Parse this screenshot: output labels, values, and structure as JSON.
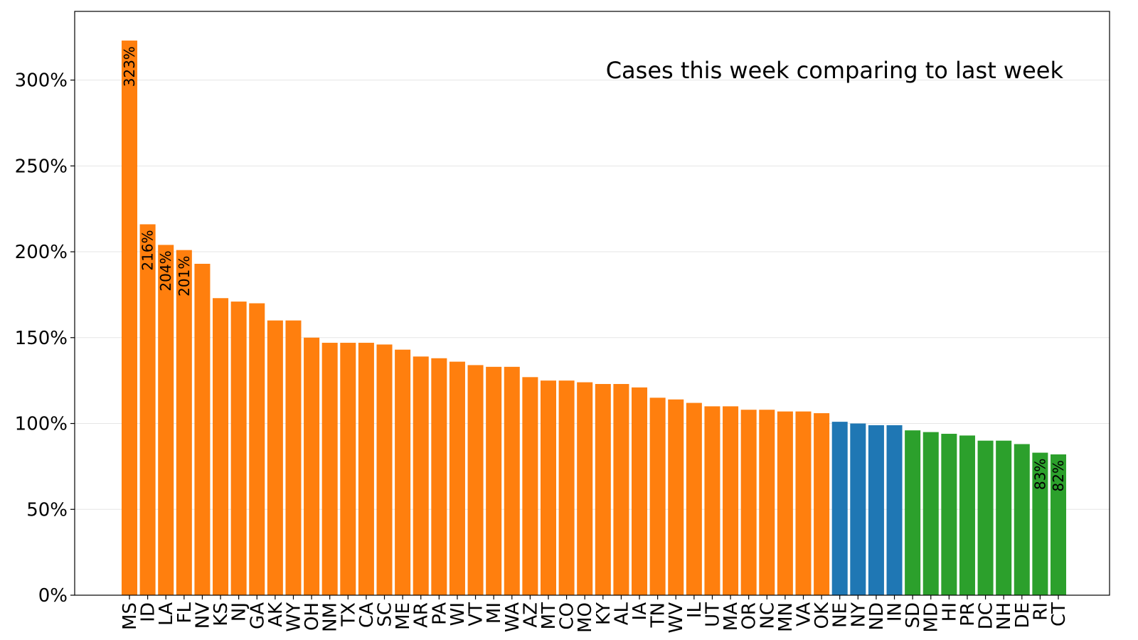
{
  "chart_data": {
    "type": "bar",
    "title": "Cases this week comparing to last week",
    "xlabel": "",
    "ylabel": "",
    "ylim": [
      0,
      3.4
    ],
    "yticks": [
      {
        "value": 0,
        "label": "0%"
      },
      {
        "value": 0.5,
        "label": "50%"
      },
      {
        "value": 1.0,
        "label": "100%"
      },
      {
        "value": 1.5,
        "label": "150%"
      },
      {
        "value": 2.0,
        "label": "200%"
      },
      {
        "value": 2.5,
        "label": "250%"
      },
      {
        "value": 3.0,
        "label": "300%"
      }
    ],
    "grid": "horizontal",
    "colors": {
      "increase": "#ff7f0e",
      "flat": "#1f77b4",
      "decrease": "#2ca02c"
    },
    "bars": [
      {
        "state": "MS",
        "value": 3.23,
        "group": "increase",
        "label": "323%"
      },
      {
        "state": "ID",
        "value": 2.16,
        "group": "increase",
        "label": "216%"
      },
      {
        "state": "LA",
        "value": 2.04,
        "group": "increase",
        "label": "204%"
      },
      {
        "state": "FL",
        "value": 2.01,
        "group": "increase",
        "label": "201%"
      },
      {
        "state": "NV",
        "value": 1.93,
        "group": "increase"
      },
      {
        "state": "KS",
        "value": 1.73,
        "group": "increase"
      },
      {
        "state": "NJ",
        "value": 1.71,
        "group": "increase"
      },
      {
        "state": "GA",
        "value": 1.7,
        "group": "increase"
      },
      {
        "state": "AK",
        "value": 1.6,
        "group": "increase"
      },
      {
        "state": "WY",
        "value": 1.6,
        "group": "increase"
      },
      {
        "state": "OH",
        "value": 1.5,
        "group": "increase"
      },
      {
        "state": "NM",
        "value": 1.47,
        "group": "increase"
      },
      {
        "state": "TX",
        "value": 1.47,
        "group": "increase"
      },
      {
        "state": "CA",
        "value": 1.47,
        "group": "increase"
      },
      {
        "state": "SC",
        "value": 1.46,
        "group": "increase"
      },
      {
        "state": "ME",
        "value": 1.43,
        "group": "increase"
      },
      {
        "state": "AR",
        "value": 1.39,
        "group": "increase"
      },
      {
        "state": "PA",
        "value": 1.38,
        "group": "increase"
      },
      {
        "state": "WI",
        "value": 1.36,
        "group": "increase"
      },
      {
        "state": "VT",
        "value": 1.34,
        "group": "increase"
      },
      {
        "state": "MI",
        "value": 1.33,
        "group": "increase"
      },
      {
        "state": "WA",
        "value": 1.33,
        "group": "increase"
      },
      {
        "state": "AZ",
        "value": 1.27,
        "group": "increase"
      },
      {
        "state": "MT",
        "value": 1.25,
        "group": "increase"
      },
      {
        "state": "CO",
        "value": 1.25,
        "group": "increase"
      },
      {
        "state": "MO",
        "value": 1.24,
        "group": "increase"
      },
      {
        "state": "KY",
        "value": 1.23,
        "group": "increase"
      },
      {
        "state": "AL",
        "value": 1.23,
        "group": "increase"
      },
      {
        "state": "IA",
        "value": 1.21,
        "group": "increase"
      },
      {
        "state": "TN",
        "value": 1.15,
        "group": "increase"
      },
      {
        "state": "WV",
        "value": 1.14,
        "group": "increase"
      },
      {
        "state": "IL",
        "value": 1.12,
        "group": "increase"
      },
      {
        "state": "UT",
        "value": 1.1,
        "group": "increase"
      },
      {
        "state": "MA",
        "value": 1.1,
        "group": "increase"
      },
      {
        "state": "OR",
        "value": 1.08,
        "group": "increase"
      },
      {
        "state": "NC",
        "value": 1.08,
        "group": "increase"
      },
      {
        "state": "MN",
        "value": 1.07,
        "group": "increase"
      },
      {
        "state": "VA",
        "value": 1.07,
        "group": "increase"
      },
      {
        "state": "OK",
        "value": 1.06,
        "group": "increase"
      },
      {
        "state": "NE",
        "value": 1.01,
        "group": "flat"
      },
      {
        "state": "NY",
        "value": 1.0,
        "group": "flat"
      },
      {
        "state": "ND",
        "value": 0.99,
        "group": "flat"
      },
      {
        "state": "IN",
        "value": 0.99,
        "group": "flat"
      },
      {
        "state": "SD",
        "value": 0.96,
        "group": "decrease"
      },
      {
        "state": "MD",
        "value": 0.95,
        "group": "decrease"
      },
      {
        "state": "HI",
        "value": 0.94,
        "group": "decrease"
      },
      {
        "state": "PR",
        "value": 0.93,
        "group": "decrease"
      },
      {
        "state": "DC",
        "value": 0.9,
        "group": "decrease"
      },
      {
        "state": "NH",
        "value": 0.9,
        "group": "decrease"
      },
      {
        "state": "DE",
        "value": 0.88,
        "group": "decrease"
      },
      {
        "state": "RI",
        "value": 0.83,
        "group": "decrease",
        "label": "83%"
      },
      {
        "state": "CT",
        "value": 0.82,
        "group": "decrease",
        "label": "82%"
      }
    ]
  }
}
